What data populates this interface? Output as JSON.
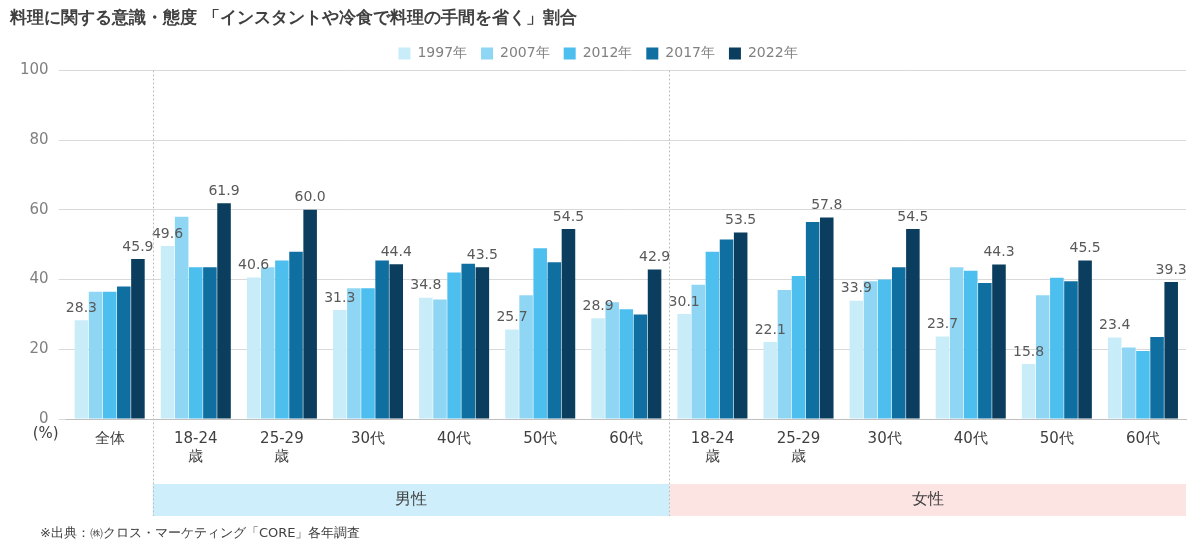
{
  "chart_data": {
    "type": "bar",
    "title": "料理に関する意識・態度 「インスタントや冷食で料理の手間を省く」割合",
    "y_label": "(%)",
    "source": "※出典：㈱クロス・マーケティング「CORE」各年調査",
    "categories": [
      "全体",
      "18-24歳",
      "25-29歳",
      "30代",
      "40代",
      "50代",
      "60代",
      "18-24歳",
      "25-29歳",
      "30代",
      "40代",
      "50代",
      "60代"
    ],
    "groups": [
      {
        "label": "男性",
        "start": 1,
        "end": 6,
        "color": "#cdeefa"
      },
      {
        "label": "女性",
        "start": 7,
        "end": 12,
        "color": "#fbe4e1"
      }
    ],
    "series": [
      {
        "name": "1997年",
        "color": "#c9ecf9",
        "data_labels": true,
        "values": [
          28.3,
          49.6,
          40.6,
          31.3,
          34.8,
          25.7,
          28.9,
          30.1,
          22.1,
          33.9,
          23.7,
          15.8,
          23.4
        ],
        "value_labels": [
          "28.3",
          "49.6",
          "40.6",
          "31.3",
          "34.8",
          "25.7",
          "28.9",
          "30.1",
          "22.1",
          "33.9",
          "23.7",
          "15.8",
          "23.4"
        ]
      },
      {
        "name": "2007年",
        "color": "#8fd6f5",
        "values": [
          36.5,
          58,
          43.5,
          37.5,
          34.3,
          35.5,
          33.5,
          38.5,
          37,
          39.5,
          43.5,
          35.5,
          20.5
        ]
      },
      {
        "name": "2012年",
        "color": "#4dbfef",
        "values": [
          36.5,
          43.5,
          45.5,
          37.5,
          42,
          49,
          31.5,
          48,
          41,
          40,
          42.5,
          40.5,
          19.5
        ]
      },
      {
        "name": "2017年",
        "color": "#0f6fa0",
        "values": [
          38,
          43.5,
          48,
          45.5,
          44.5,
          45,
          30,
          51.5,
          56.5,
          43.5,
          39,
          39.5,
          23.5
        ]
      },
      {
        "name": "2022年",
        "color": "#0b3e5e",
        "data_labels": true,
        "values": [
          45.9,
          61.9,
          60,
          44.4,
          43.5,
          54.5,
          42.9,
          53.5,
          57.8,
          54.5,
          44.3,
          45.5,
          39.3
        ],
        "value_labels": [
          "45.9",
          "61.9",
          "60.0",
          "44.4",
          "43.5",
          "54.5",
          "42.9",
          "53.5",
          "57.8",
          "54.5",
          "44.3",
          "45.5",
          "39.3"
        ]
      }
    ],
    "ylim": [
      0,
      100
    ],
    "yticks": [
      0,
      20,
      40,
      60,
      80,
      100
    ],
    "grid": true,
    "legend": "top"
  }
}
